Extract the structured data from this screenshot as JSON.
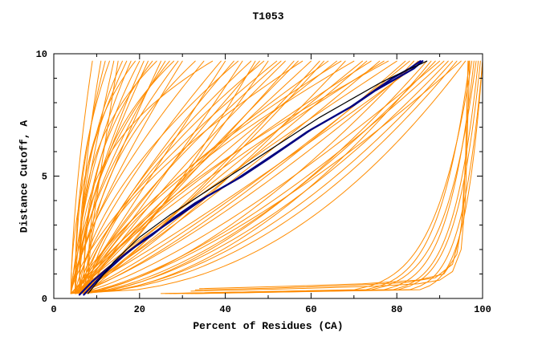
{
  "chart_data": {
    "type": "line",
    "title": "T1053",
    "xlabel": "Percent of Residues (CA)",
    "ylabel": "Distance Cutoff, A",
    "xlim": [
      0,
      100
    ],
    "ylim": [
      0,
      10
    ],
    "xticks": [
      0,
      20,
      40,
      60,
      80,
      100
    ],
    "xminor": [
      10,
      30,
      50,
      70,
      90
    ],
    "yticks": [
      0,
      5,
      10
    ],
    "yminor": [
      1,
      2,
      3,
      4,
      6,
      7,
      8,
      9
    ],
    "grid": false,
    "legend": null,
    "colors": {
      "model": "#FF8C00",
      "best": "#000080",
      "reference": "#000000",
      "frame": "#000000",
      "background": "#FFFFFF"
    },
    "curve_y_start": 0.2,
    "curve_y_end": 9.7,
    "model_curves_param": [
      [
        4,
        9,
        1.6
      ],
      [
        5,
        12,
        2.0
      ],
      [
        4,
        14,
        1.2
      ],
      [
        6,
        16,
        2.5
      ],
      [
        5,
        18,
        1.8
      ],
      [
        7,
        20,
        2.2
      ],
      [
        4,
        22,
        1.4
      ],
      [
        6,
        24,
        3.0
      ],
      [
        5,
        26,
        1.6
      ],
      [
        8,
        28,
        2.8
      ],
      [
        4,
        30,
        1.3
      ],
      [
        6,
        11,
        1.9
      ],
      [
        5,
        13,
        2.4
      ],
      [
        7,
        15,
        1.1
      ],
      [
        4,
        17,
        2.0
      ],
      [
        6,
        19,
        3.2
      ],
      [
        5,
        21,
        1.5
      ],
      [
        7,
        23,
        2.6
      ],
      [
        4,
        25,
        1.2
      ],
      [
        6,
        27,
        2.1
      ],
      [
        5,
        29,
        1.7
      ],
      [
        8,
        33,
        2.3
      ],
      [
        4,
        35,
        1.45
      ],
      [
        6,
        37,
        2.9
      ],
      [
        5,
        39,
        1.35
      ],
      [
        5,
        40,
        1.0
      ],
      [
        6,
        42,
        1.3
      ],
      [
        4,
        44,
        0.9
      ],
      [
        7,
        46,
        1.5
      ],
      [
        5,
        48,
        1.1
      ],
      [
        6,
        50,
        0.85
      ],
      [
        4,
        52,
        1.4
      ],
      [
        8,
        54,
        1.2
      ],
      [
        5,
        56,
        0.95
      ],
      [
        6,
        58,
        1.6
      ],
      [
        4,
        60,
        1.05
      ],
      [
        7,
        62,
        0.9
      ],
      [
        5,
        64,
        1.3
      ],
      [
        6,
        66,
        1.15
      ],
      [
        4,
        68,
        0.8
      ],
      [
        8,
        70,
        1.5
      ],
      [
        5,
        72,
        1.0
      ],
      [
        6,
        74,
        1.25
      ],
      [
        4,
        76,
        0.9
      ],
      [
        7,
        78,
        1.4
      ],
      [
        5,
        80,
        1.1
      ],
      [
        6,
        43,
        1.7
      ],
      [
        5,
        47,
        0.75
      ],
      [
        7,
        53,
        1.35
      ],
      [
        6,
        57,
        1.05
      ],
      [
        5,
        63,
        0.85
      ],
      [
        7,
        67,
        1.45
      ],
      [
        6,
        73,
        0.95
      ],
      [
        5,
        77,
        1.2
      ],
      [
        8,
        49,
        1.6
      ],
      [
        5,
        82,
        0.8
      ],
      [
        6,
        84,
        0.65
      ],
      [
        4,
        86,
        0.9
      ],
      [
        7,
        88,
        0.55
      ],
      [
        5,
        90,
        0.75
      ],
      [
        6,
        92,
        0.6
      ],
      [
        4,
        94,
        0.5
      ],
      [
        6,
        95,
        0.7
      ],
      [
        5,
        83,
        0.85
      ],
      [
        7,
        87,
        0.6
      ],
      [
        5,
        91,
        0.68
      ],
      [
        6,
        93,
        0.55
      ],
      [
        4,
        85,
        0.78
      ],
      [
        6,
        89,
        0.62
      ],
      [
        5,
        96,
        0.45
      ],
      [
        25,
        97,
        0.1
      ],
      [
        30,
        98,
        0.09
      ],
      [
        28,
        99,
        0.08
      ],
      [
        32,
        100,
        0.07
      ],
      [
        26,
        98.5,
        0.1
      ],
      [
        31,
        99.5,
        0.08
      ],
      [
        27,
        97.5,
        0.12
      ],
      [
        33,
        100,
        0.06
      ]
    ],
    "model_curves_points": [
      [
        [
          32,
          0.3
        ],
        [
          45,
          0.35
        ],
        [
          60,
          0.42
        ],
        [
          75,
          0.5
        ],
        [
          85,
          0.6
        ],
        [
          90,
          0.75
        ],
        [
          93,
          1.1
        ],
        [
          95,
          2.0
        ],
        [
          96,
          4.0
        ],
        [
          96.5,
          7.0
        ],
        [
          97,
          9.7
        ]
      ],
      [
        [
          33,
          0.35
        ],
        [
          50,
          0.42
        ],
        [
          68,
          0.52
        ],
        [
          82,
          0.65
        ],
        [
          89,
          0.85
        ],
        [
          93,
          1.4
        ],
        [
          95,
          2.8
        ],
        [
          96,
          5.5
        ],
        [
          96.5,
          9.0
        ],
        [
          96.8,
          9.7
        ]
      ],
      [
        [
          34,
          0.4
        ],
        [
          55,
          0.5
        ],
        [
          72,
          0.6
        ],
        [
          85,
          0.75
        ],
        [
          91,
          1.0
        ],
        [
          94,
          1.8
        ],
        [
          95.5,
          3.5
        ],
        [
          96.2,
          6.5
        ],
        [
          96.6,
          9.7
        ]
      ]
    ],
    "highlight_curves": [
      [
        [
          6,
          0.15
        ],
        [
          9,
          0.7
        ],
        [
          13,
          1.3
        ],
        [
          18,
          2.0
        ],
        [
          23,
          2.6
        ],
        [
          28,
          3.3
        ],
        [
          33,
          3.9
        ],
        [
          38,
          4.4
        ],
        [
          44,
          5.0
        ],
        [
          50,
          5.7
        ],
        [
          55,
          6.3
        ],
        [
          60,
          6.9
        ],
        [
          65,
          7.4
        ],
        [
          70,
          7.9
        ],
        [
          75,
          8.5
        ],
        [
          80,
          9.0
        ],
        [
          84,
          9.4
        ],
        [
          86,
          9.7
        ]
      ],
      [
        [
          7,
          0.15
        ],
        [
          11,
          0.9
        ],
        [
          16,
          1.7
        ],
        [
          21,
          2.4
        ],
        [
          26,
          3.0
        ],
        [
          31,
          3.6
        ],
        [
          36,
          4.2
        ],
        [
          42,
          4.8
        ],
        [
          48,
          5.5
        ],
        [
          54,
          6.2
        ],
        [
          59,
          6.8
        ],
        [
          64,
          7.3
        ],
        [
          69,
          7.8
        ],
        [
          74,
          8.4
        ],
        [
          79,
          9.0
        ],
        [
          83,
          9.4
        ],
        [
          85.5,
          9.7
        ]
      ]
    ],
    "reference_curve": [
      [
        8,
        0.2
      ],
      [
        14,
        1.5
      ],
      [
        20,
        2.5
      ],
      [
        27,
        3.4
      ],
      [
        34,
        4.2
      ],
      [
        41,
        5.0
      ],
      [
        48,
        5.8
      ],
      [
        55,
        6.6
      ],
      [
        62,
        7.4
      ],
      [
        69,
        8.1
      ],
      [
        76,
        8.8
      ],
      [
        82,
        9.3
      ],
      [
        87,
        9.7
      ]
    ]
  }
}
